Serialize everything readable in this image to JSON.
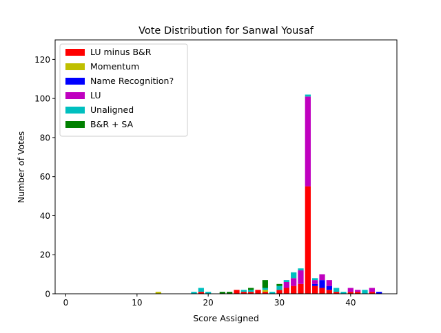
{
  "chart_data": {
    "type": "bar",
    "stacked": true,
    "title": "Vote Distribution for Sanwal Yousaf",
    "xlabel": "Score Assigned",
    "ylabel": "Number of Votes",
    "xlim": [
      -1.5,
      46.5
    ],
    "ylim": [
      0,
      130
    ],
    "xticks": [
      0,
      10,
      20,
      30,
      40
    ],
    "yticks": [
      0,
      20,
      40,
      60,
      80,
      100,
      120
    ],
    "grid": false,
    "legend_position": "upper-left",
    "x": [
      13,
      18,
      19,
      20,
      22,
      23,
      24,
      25,
      26,
      27,
      28,
      29,
      30,
      31,
      32,
      33,
      34,
      35,
      36,
      37,
      38,
      39,
      40,
      41,
      42,
      43,
      44
    ],
    "series": [
      {
        "name": "LU minus B&R",
        "color": "#ff0000",
        "values": [
          0,
          0,
          1,
          0,
          0,
          0,
          2,
          1,
          1,
          2,
          1,
          0,
          2,
          3,
          4,
          5,
          55,
          4,
          3,
          2,
          1,
          0,
          1,
          1,
          0,
          1,
          0
        ]
      },
      {
        "name": "Momentum",
        "color": "#bfbf00",
        "values": [
          1,
          0,
          0,
          0,
          0,
          0,
          0,
          0,
          0,
          0,
          1,
          0,
          0,
          0,
          0,
          0,
          0,
          0,
          0,
          0,
          0,
          0,
          0,
          0,
          0,
          0,
          0
        ]
      },
      {
        "name": "Name Recognition?",
        "color": "#0000ff",
        "values": [
          0,
          0,
          0,
          0,
          0,
          0,
          0,
          0,
          0,
          0,
          0,
          0,
          0,
          0,
          0,
          0,
          0,
          1,
          4,
          2,
          0,
          0,
          0,
          0,
          0,
          0,
          1
        ]
      },
      {
        "name": "LU",
        "color": "#bf00bf",
        "values": [
          0,
          0,
          0,
          0,
          0,
          0,
          0,
          0,
          0,
          0,
          0,
          0,
          0,
          3,
          4,
          7,
          46,
          2,
          3,
          3,
          0,
          0,
          2,
          1,
          0,
          2,
          0
        ]
      },
      {
        "name": "Unaligned",
        "color": "#00bfbf",
        "values": [
          0,
          1,
          2,
          1,
          0,
          0,
          0,
          1,
          1,
          0,
          1,
          1,
          2,
          1,
          3,
          1,
          1,
          1,
          0,
          0,
          2,
          1,
          0,
          0,
          2,
          0,
          0
        ]
      },
      {
        "name": "B&R + SA",
        "color": "#008000",
        "values": [
          0,
          0,
          0,
          0,
          1,
          1,
          0,
          0,
          1,
          0,
          4,
          0,
          1,
          0,
          0,
          0,
          0,
          0,
          0,
          0,
          0,
          0,
          0,
          0,
          0,
          0,
          0
        ]
      }
    ]
  }
}
